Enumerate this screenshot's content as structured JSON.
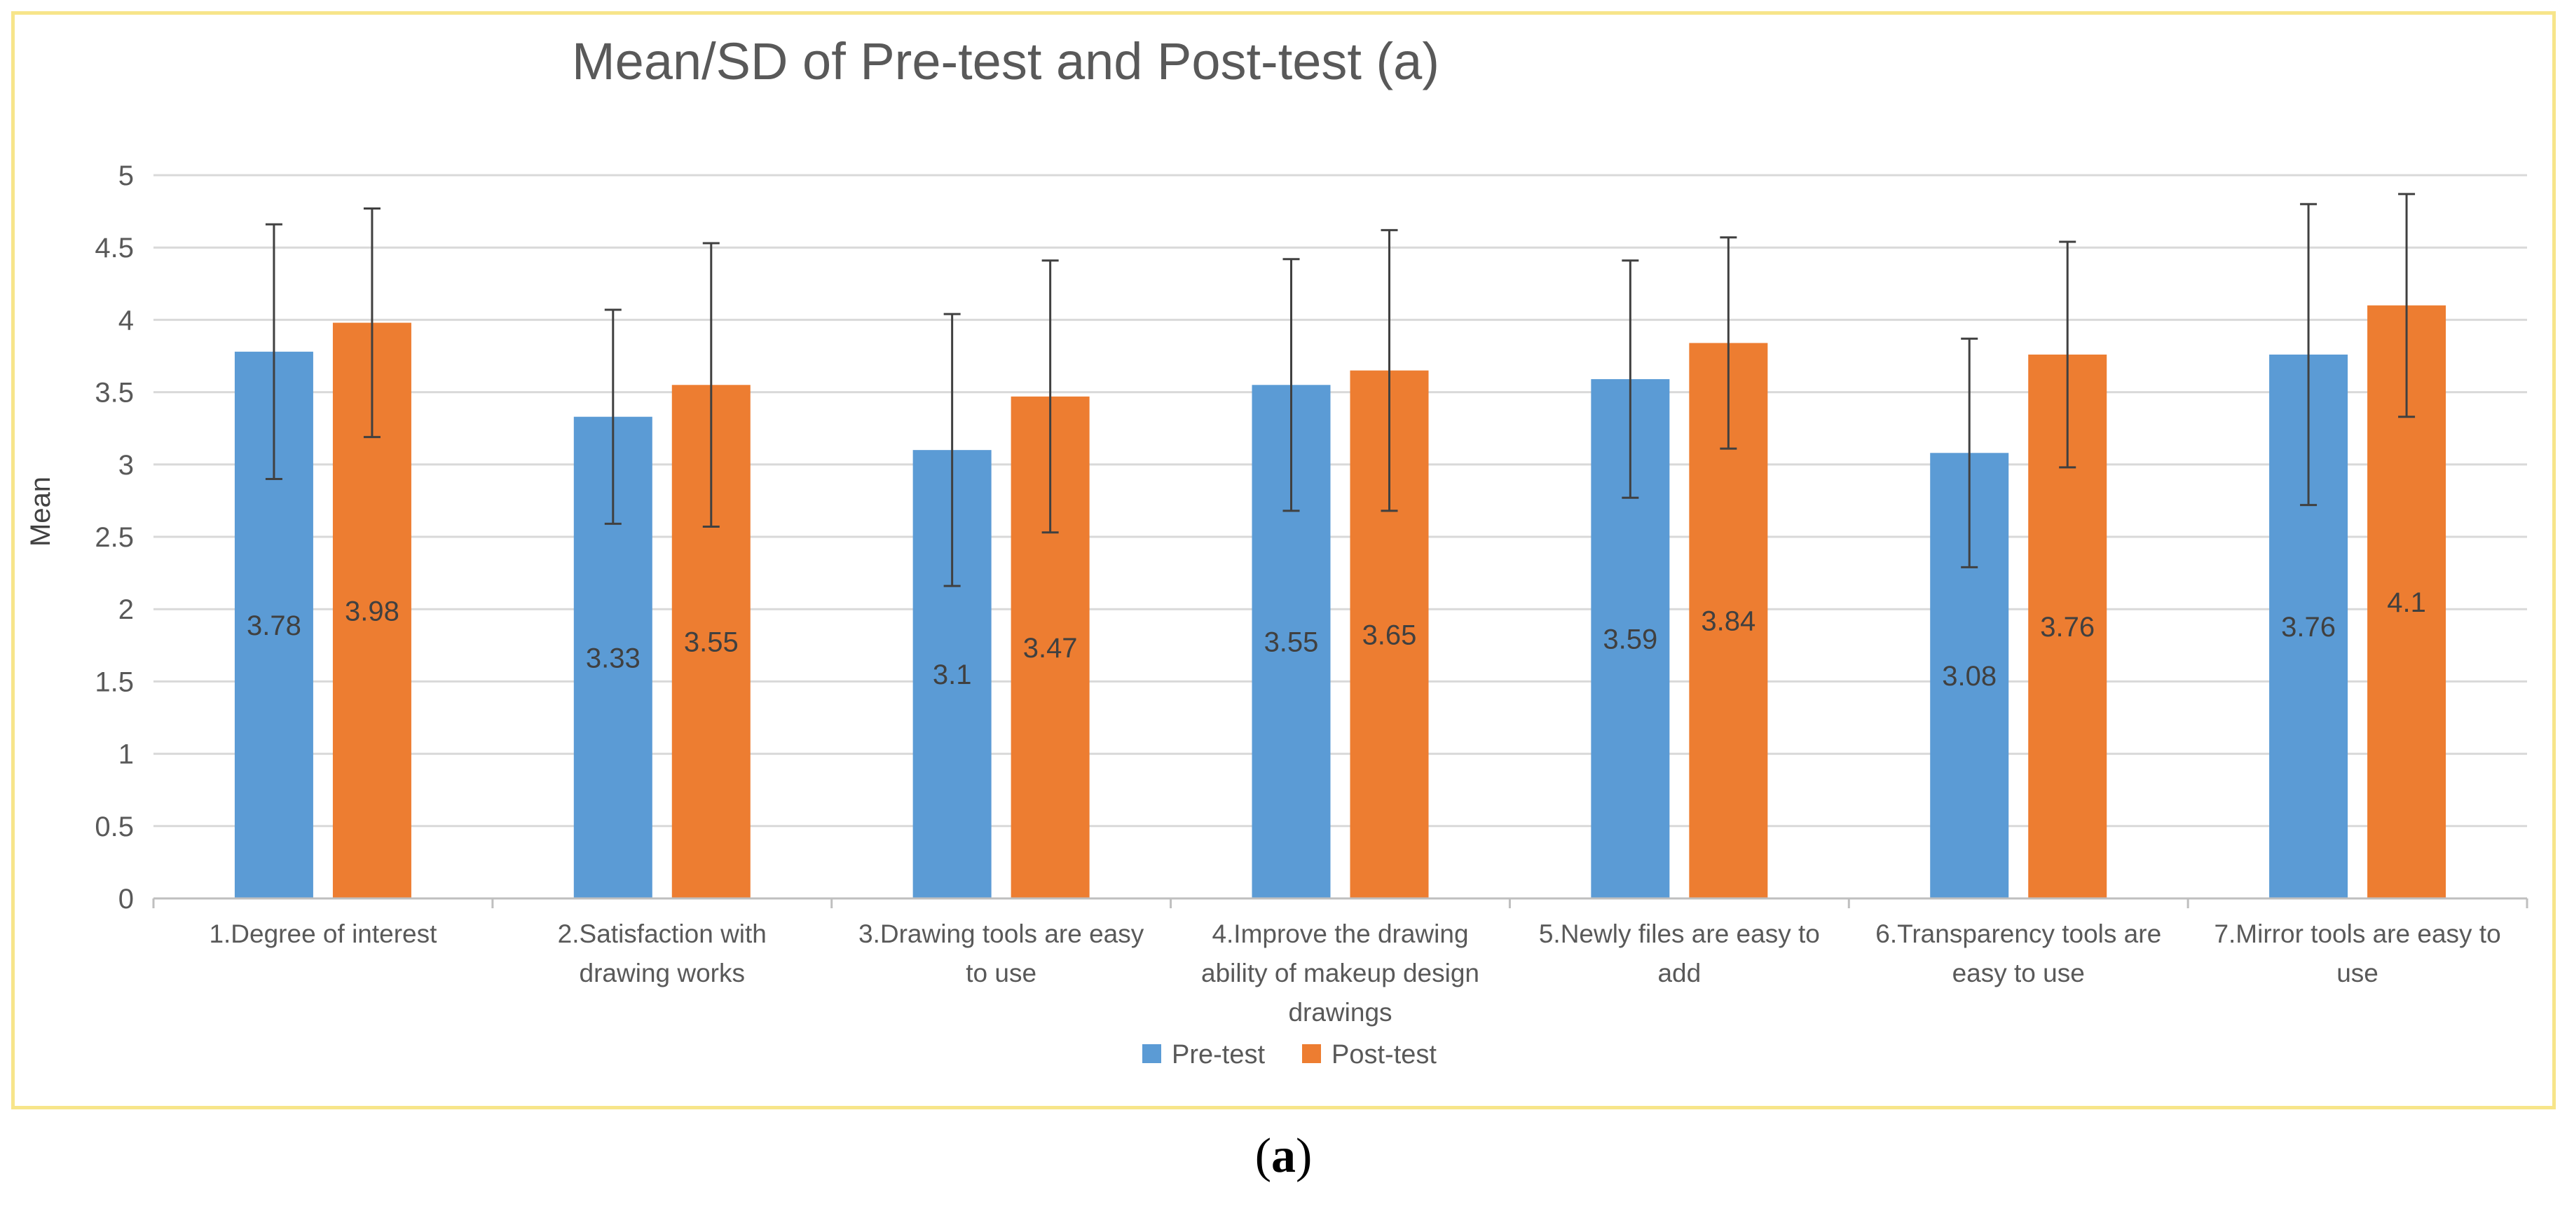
{
  "chart_data": {
    "type": "bar",
    "title": "Mean/SD of Pre-test and Post-test (a)",
    "xlabel": "",
    "ylabel": "Mean",
    "ylim": [
      0,
      5
    ],
    "ytick_step": 0.5,
    "yticks": [
      "0",
      "0.5",
      "1",
      "1.5",
      "2",
      "2.5",
      "3",
      "3.5",
      "4",
      "4.5",
      "5"
    ],
    "grid": true,
    "legend_position": "bottom-center",
    "categories": [
      [
        "1.Degree of interest"
      ],
      [
        "2.Satisfaction with",
        "drawing works"
      ],
      [
        "3.Drawing tools are easy",
        "to use"
      ],
      [
        "4.Improve the drawing",
        "ability of makeup design",
        "drawings"
      ],
      [
        "5.Newly  files are easy to",
        "add"
      ],
      [
        "6.Transparency tools are",
        "easy to use"
      ],
      [
        "7.Mirror tools are easy to",
        "use"
      ]
    ],
    "series": [
      {
        "name": "Pre-test",
        "color": "#5b9bd5",
        "values": [
          3.78,
          3.33,
          3.1,
          3.55,
          3.59,
          3.08,
          3.76
        ],
        "labels": [
          "3.78",
          "3.33",
          "3.1",
          "3.55",
          "3.59",
          "3.08",
          "3.76"
        ],
        "error": [
          0.88,
          0.74,
          0.94,
          0.87,
          0.82,
          0.79,
          1.04
        ]
      },
      {
        "name": "Post-test",
        "color": "#ed7d31",
        "values": [
          3.98,
          3.55,
          3.47,
          3.65,
          3.84,
          3.76,
          4.1
        ],
        "labels": [
          "3.98",
          "3.55",
          "3.47",
          "3.65",
          "3.84",
          "3.76",
          "4.1"
        ],
        "error": [
          0.79,
          0.98,
          0.94,
          0.97,
          0.73,
          0.78,
          0.77
        ]
      }
    ],
    "colors": {
      "grid": "#d9d9d9",
      "axis": "#bfbfbf",
      "text": "#595959",
      "error_bar": "#404040",
      "label": "#404040"
    }
  },
  "caption": {
    "open": "(",
    "letter": "a",
    "close": ")"
  }
}
